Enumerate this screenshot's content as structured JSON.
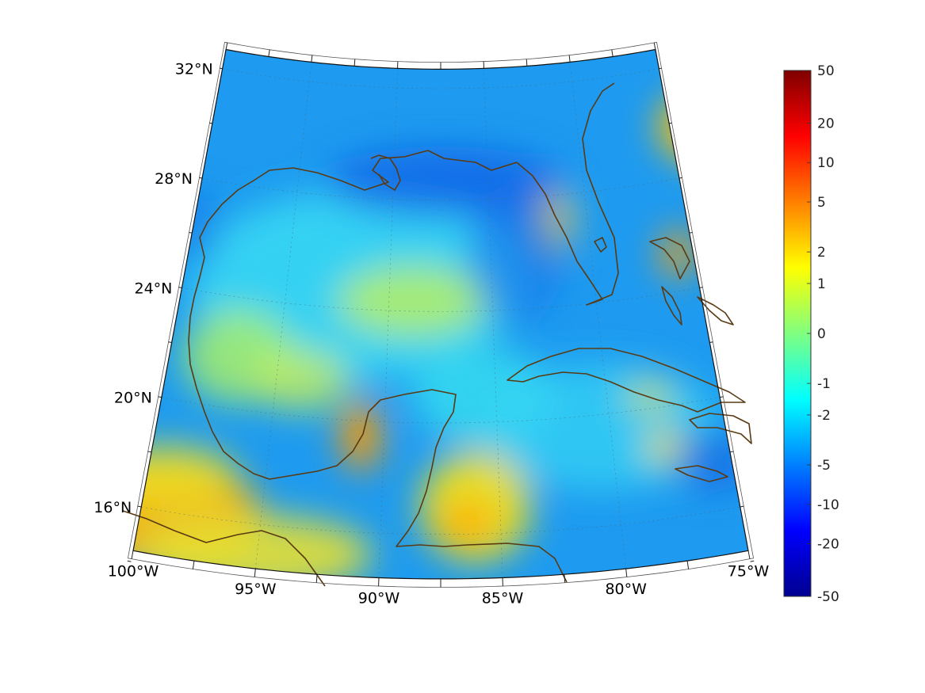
{
  "map": {
    "projection": "conic",
    "region": "Gulf of Mexico and Caribbean",
    "lon_range": [
      -100,
      -75
    ],
    "lat_range": [
      14,
      33
    ],
    "lon_ticks": [
      {
        "lon": -100,
        "label": "100°W"
      },
      {
        "lon": -95,
        "label": "95°W"
      },
      {
        "lon": -90,
        "label": "90°W"
      },
      {
        "lon": -85,
        "label": "85°W"
      },
      {
        "lon": -80,
        "label": "80°W"
      },
      {
        "lon": -75,
        "label": "75°W"
      }
    ],
    "lat_ticks": [
      {
        "lat": 16,
        "label": "16°N"
      },
      {
        "lat": 20,
        "label": "20°N"
      },
      {
        "lat": 24,
        "label": "24°N"
      },
      {
        "lat": 28,
        "label": "28°N"
      },
      {
        "lat": 32,
        "label": "32°N"
      }
    ],
    "grid": true,
    "coastline_color": "#5a3a12"
  },
  "colorbar": {
    "colormap": "jet",
    "scale": "symmetric-log",
    "range": [
      -50,
      50
    ],
    "tick_labels": [
      "50",
      "20",
      "10",
      "5",
      "2",
      "1",
      "0",
      "-1",
      "-2",
      "-5",
      "-10",
      "-20",
      "-50"
    ]
  }
}
